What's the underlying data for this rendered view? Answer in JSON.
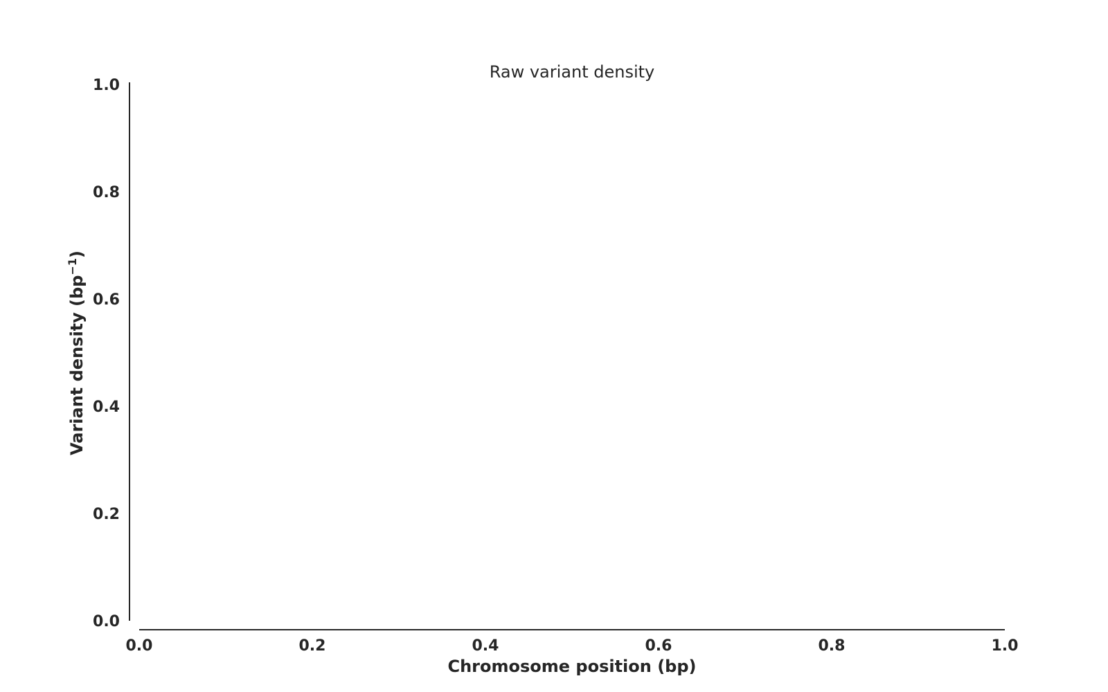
{
  "chart_data": {
    "type": "line",
    "title": "Raw variant density",
    "xlabel": "Chromosome position (bp)",
    "ylabel": {
      "text": "Variant density (bp",
      "superscript": "−1",
      "suffix": ")"
    },
    "xlim": [
      0.0,
      1.0
    ],
    "ylim": [
      0.0,
      1.0
    ],
    "x_ticks": [
      "0.0",
      "0.2",
      "0.4",
      "0.6",
      "0.8",
      "1.0"
    ],
    "y_ticks": [
      "0.0",
      "0.2",
      "0.4",
      "0.6",
      "0.8",
      "1.0"
    ],
    "series": [],
    "grid": false,
    "legend": "none"
  }
}
